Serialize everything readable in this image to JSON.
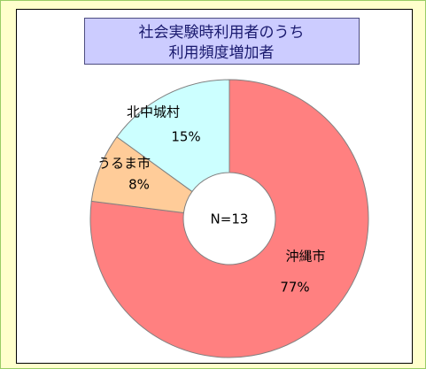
{
  "chart_data": {
    "type": "donut",
    "title": [
      "社会実験時利用者のうち",
      "利用頻度増加者"
    ],
    "annotation": "N=13",
    "categories": [
      "沖縄市",
      "うるま市",
      "北中城村"
    ],
    "values": [
      77,
      8,
      15
    ],
    "value_labels": [
      "77%",
      "8%",
      "15%"
    ],
    "colors": [
      "#FF8080",
      "#FFCC99",
      "#CCFFFF"
    ]
  }
}
